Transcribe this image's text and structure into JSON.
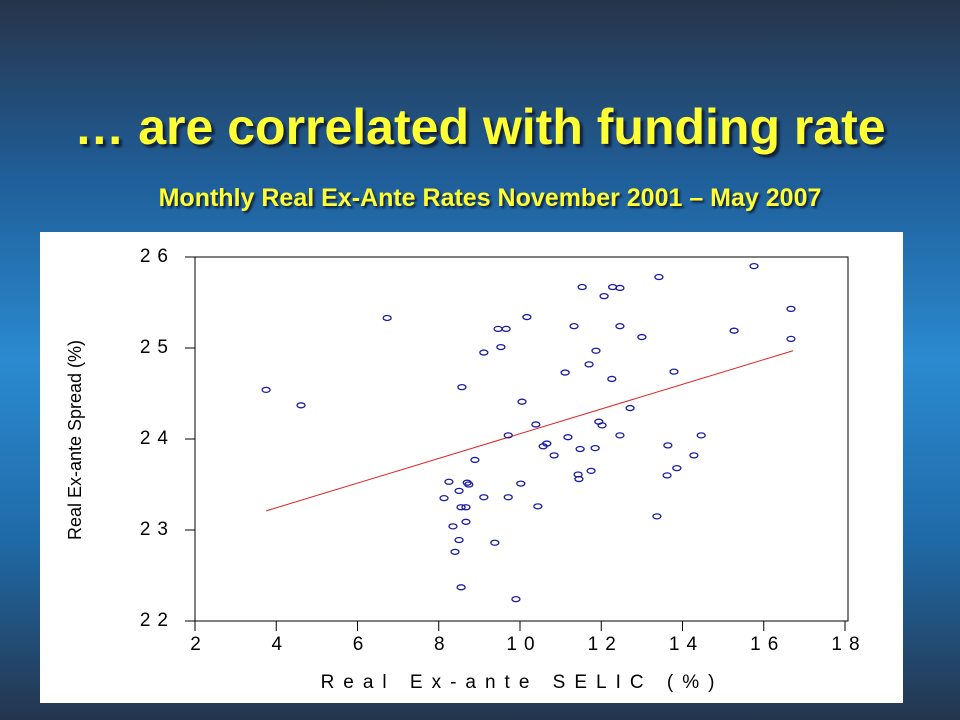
{
  "chart_data": {
    "type": "scatter",
    "title": "… are correlated with funding rate",
    "subtitle": "Monthly Real Ex-Ante Rates November 2001 – May 2007",
    "x_label": "Real Ex-ante SELIC (%)",
    "y_label": "Real Ex-ante Spread (%)",
    "xlim": [
      2,
      18
    ],
    "xticks": [
      2,
      4,
      6,
      8,
      10,
      12,
      14,
      16,
      18
    ],
    "ylim": [
      22,
      26
    ],
    "yticks": [
      22,
      23,
      24,
      25,
      26
    ],
    "grid": false,
    "series": [
      {
        "name": null,
        "color": "#1a1aa0",
        "x": [
          3.75,
          4.61,
          6.73,
          8.13,
          8.25,
          8.35,
          8.4,
          8.5,
          8.5,
          8.55,
          8.57,
          8.55,
          8.67,
          8.67,
          8.7,
          8.74,
          8.89,
          9.11,
          9.11,
          9.38,
          9.46,
          9.53,
          9.66,
          9.71,
          9.71,
          9.9,
          10.02,
          10.05,
          10.17,
          10.39,
          10.44,
          10.57,
          10.66,
          10.84,
          11.11,
          11.18,
          11.33,
          11.43,
          11.45,
          11.48,
          11.53,
          11.7,
          11.75,
          11.85,
          11.87,
          11.94,
          12.02,
          12.07,
          12.26,
          12.28,
          12.46,
          12.46,
          12.46,
          12.71,
          13.0,
          13.37,
          13.42,
          13.62,
          13.64,
          13.79,
          13.86,
          14.28,
          14.46,
          15.27,
          15.76,
          16.67,
          16.67
        ],
        "values": [
          24.54,
          24.37,
          25.33,
          23.35,
          23.53,
          23.04,
          22.76,
          22.89,
          23.43,
          23.25,
          24.57,
          22.37,
          23.25,
          23.09,
          23.52,
          23.5,
          23.77,
          24.95,
          23.36,
          22.86,
          25.21,
          25.01,
          25.21,
          23.36,
          24.04,
          22.24,
          23.51,
          24.41,
          25.34,
          24.16,
          23.26,
          23.92,
          23.95,
          23.82,
          24.73,
          24.02,
          25.24,
          23.61,
          23.56,
          23.89,
          25.67,
          24.82,
          23.65,
          23.9,
          24.97,
          24.19,
          24.15,
          25.57,
          24.66,
          25.67,
          25.66,
          25.24,
          24.04,
          24.34,
          25.12,
          23.15,
          25.78,
          23.6,
          23.93,
          24.74,
          23.68,
          23.82,
          24.04,
          25.19,
          25.9,
          25.43,
          25.1
        ]
      }
    ],
    "fit_line": {
      "color": "#dd2222",
      "x": [
        3.75,
        16.72
      ],
      "values": [
        23.21,
        24.97
      ]
    }
  }
}
